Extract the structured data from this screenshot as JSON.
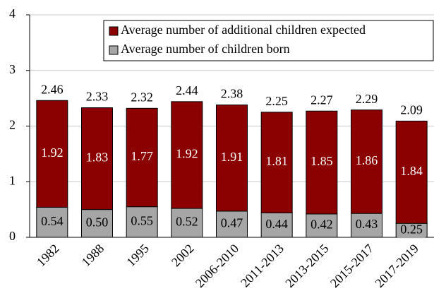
{
  "chart_data": {
    "type": "stacked_bar",
    "categories": [
      "1982",
      "1988",
      "1995",
      "2002",
      "2006-2010",
      "2011-2013",
      "2013-2015",
      "2015-2017",
      "2017-2019"
    ],
    "series": [
      {
        "name": "Average number of children born",
        "color": "#a6a6a6",
        "values": [
          0.54,
          0.5,
          0.55,
          0.52,
          0.47,
          0.44,
          0.42,
          0.43,
          0.25
        ],
        "value_labels": [
          "0.54",
          "0.50",
          "0.55",
          "0.52",
          "0.47",
          "0.44",
          "0.42",
          "0.43",
          "0.25"
        ]
      },
      {
        "name": "Average number of additional children expected",
        "color": "#8b0000",
        "values": [
          1.92,
          1.83,
          1.77,
          1.92,
          1.91,
          1.81,
          1.85,
          1.86,
          1.84
        ]
      }
    ],
    "totals": [
      2.46,
      2.33,
      2.32,
      2.44,
      2.38,
      2.25,
      2.27,
      2.29,
      2.09
    ],
    "ylim": [
      0,
      4
    ],
    "yticks": [
      0,
      1,
      2,
      3,
      4
    ],
    "grid": true,
    "legend": "top-right"
  }
}
